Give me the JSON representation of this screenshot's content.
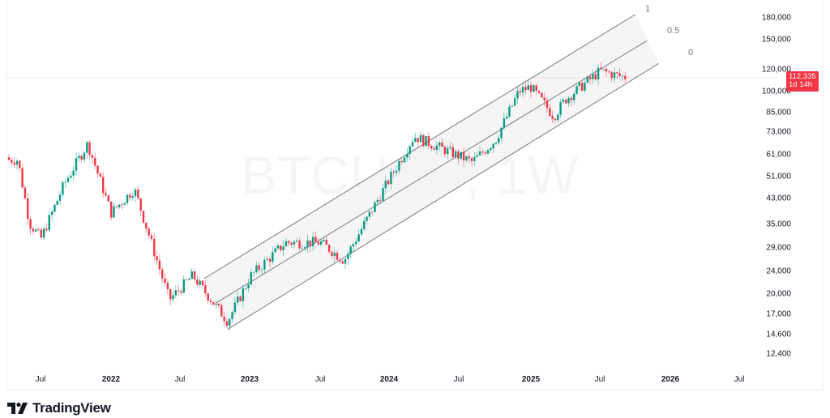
{
  "chart_data": {
    "type": "candlestick",
    "symbol": "BTCUSD",
    "interval": "1W",
    "watermark": "BTCUSD, 1W",
    "title": "BTCUSD, 1W",
    "xlabel": "",
    "ylabel": "",
    "y_scale": "log",
    "ylim": [
      11000,
      200000
    ],
    "y_ticks": [
      180000,
      150000,
      120000,
      100000,
      85000,
      73000,
      61000,
      51000,
      43000,
      35000,
      29000,
      24000,
      20000,
      17000,
      14600,
      12400
    ],
    "x_ticks": [
      {
        "label": "Jul",
        "year": false
      },
      {
        "label": "2022",
        "year": true
      },
      {
        "label": "Jul",
        "year": false
      },
      {
        "label": "2023",
        "year": true
      },
      {
        "label": "Jul",
        "year": false
      },
      {
        "label": "2024",
        "year": true
      },
      {
        "label": "Jul",
        "year": false
      },
      {
        "label": "2025",
        "year": true
      },
      {
        "label": "Jul",
        "year": false
      },
      {
        "label": "2026",
        "year": true
      },
      {
        "label": "Jul",
        "year": false
      }
    ],
    "last_price": 112335,
    "countdown": "1d 14h",
    "colors": {
      "up": "#089981",
      "down": "#f23645",
      "channel": "#787b86",
      "channel_fill": "#f3f3f5"
    },
    "channel": {
      "type": "parallel_channel_fib",
      "levels": [
        {
          "level": "1",
          "start": {
            "date": "2022-09",
            "price": 22500
          },
          "end": {
            "date": "2025-10",
            "price": 185000
          }
        },
        {
          "level": "0.5",
          "start": {
            "date": "2022-10",
            "price": 18500
          },
          "end": {
            "date": "2025-11",
            "price": 150000
          }
        },
        {
          "level": "0",
          "start": {
            "date": "2022-11",
            "price": 15000
          },
          "end": {
            "date": "2025-12",
            "price": 125000
          }
        }
      ]
    },
    "grid": false,
    "legend": "none",
    "series_description": "Weekly BTC/USD candles from ~May 2021 to Sep 2025; peak ~68k Nov 2021, low ~15.5k Nov 2022, rally to ~73k Mar 2024, ~108k Dec 2024, ~124k Aug 2025, last ~112,335",
    "key_points": [
      {
        "date": "2021-05",
        "close": 58000
      },
      {
        "date": "2021-06",
        "close": 35000
      },
      {
        "date": "2021-07",
        "close": 31000
      },
      {
        "date": "2021-09",
        "close": 48000
      },
      {
        "date": "2021-11",
        "close": 66000
      },
      {
        "date": "2022-01",
        "close": 38000
      },
      {
        "date": "2022-03",
        "close": 46000
      },
      {
        "date": "2022-06",
        "close": 19000
      },
      {
        "date": "2022-08",
        "close": 23000
      },
      {
        "date": "2022-11",
        "close": 16000
      },
      {
        "date": "2023-01",
        "close": 23000
      },
      {
        "date": "2023-04",
        "close": 30000
      },
      {
        "date": "2023-07",
        "close": 30000
      },
      {
        "date": "2023-09",
        "close": 26000
      },
      {
        "date": "2023-12",
        "close": 43000
      },
      {
        "date": "2024-03",
        "close": 70000
      },
      {
        "date": "2024-08",
        "close": 57000
      },
      {
        "date": "2024-10",
        "close": 68000
      },
      {
        "date": "2024-12",
        "close": 100000
      },
      {
        "date": "2025-01",
        "close": 104000
      },
      {
        "date": "2025-03",
        "close": 82000
      },
      {
        "date": "2025-04",
        "close": 94000
      },
      {
        "date": "2025-07",
        "close": 118000
      },
      {
        "date": "2025-08",
        "close": 115000
      },
      {
        "date": "2025-09",
        "close": 112335
      }
    ]
  },
  "axis": {
    "y_labels": [
      "180,000",
      "150,000",
      "120,000",
      "100,000",
      "85,000",
      "73,000",
      "61,000",
      "51,000",
      "43,000",
      "35,000",
      "29,000",
      "24,000",
      "20,000",
      "17,000",
      "14,600",
      "12,400"
    ],
    "x_labels": [
      "Jul",
      "2022",
      "Jul",
      "2023",
      "Jul",
      "2024",
      "Jul",
      "2025",
      "Jul",
      "2026",
      "Jul"
    ]
  },
  "price_tag": {
    "price": "112,335",
    "countdown": "1d 14h"
  },
  "fib_labels": {
    "level_1": "1",
    "level_05": "0.5",
    "level_0": "0"
  },
  "watermark": "BTCUSD, 1W",
  "brand": {
    "name": "TradingView"
  }
}
